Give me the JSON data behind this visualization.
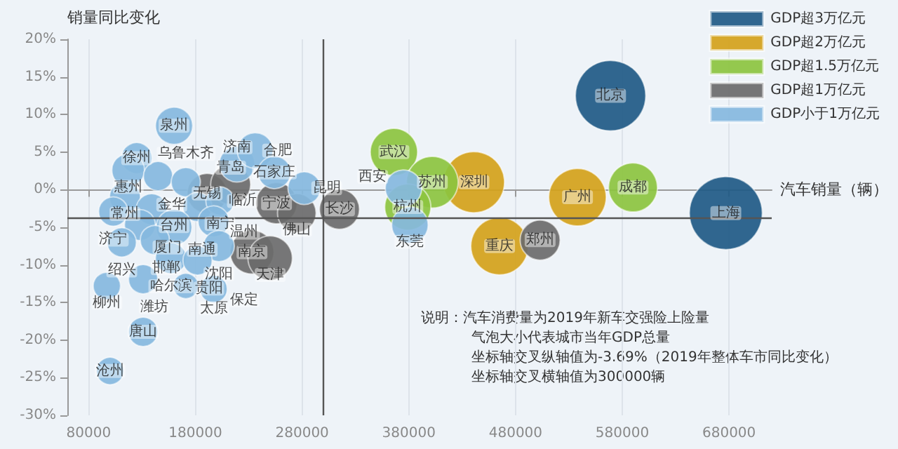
{
  "chart_data": {
    "type": "bubble",
    "xlabel": "汽车销量（辆）",
    "ylabel": "销量同比变化",
    "xlim": [
      60000,
      720000
    ],
    "xticks": [
      80000,
      180000,
      280000,
      380000,
      480000,
      580000,
      680000
    ],
    "ylim": [
      -30,
      20
    ],
    "yticks": [
      {
        "value": -30,
        "label": "-30%"
      },
      {
        "value": -25,
        "label": "-25%"
      },
      {
        "value": -20,
        "label": "-20%"
      },
      {
        "value": -15,
        "label": "-15%"
      },
      {
        "value": -10,
        "label": "-10%"
      },
      {
        "value": -5,
        "label": "-5%"
      },
      {
        "value": 0,
        "label": "0%"
      },
      {
        "value": 5,
        "label": "5%"
      },
      {
        "value": 10,
        "label": "10%"
      },
      {
        "value": 15,
        "label": "15%"
      },
      {
        "value": 20,
        "label": "20%"
      }
    ],
    "grid": "x",
    "legend": "top right",
    "series": [
      {
        "name": "GDP超3万亿元",
        "color": "#1f5a85",
        "x": [
          569000,
          677000
        ],
        "values": [
          12.5,
          -3.1
        ],
        "sizes": [
          0.93,
          1
        ]
      },
      {
        "name": "GDP超2万亿元",
        "color": "#d4a21a",
        "x": [
          441000,
          538000,
          465000
        ],
        "values": [
          1.0,
          -1.0,
          -7.5
        ],
        "sizes": [
          0.7,
          0.62,
          0.62
        ]
      },
      {
        "name": "GDP超1.5万亿元",
        "color": "#8cc43f",
        "x": [
          366000,
          402000,
          379000,
          590000
        ],
        "values": [
          5.0,
          1.0,
          -2.3,
          0.3
        ],
        "sizes": [
          0.42,
          0.5,
          0.4,
          0.45
        ]
      },
      {
        "name": "GDP超1万亿元",
        "color": "#6b6b6b",
        "x": [
          191000,
          213000,
          256000,
          275000,
          233000,
          250000,
          315000,
          503000
        ],
        "values": [
          -0.5,
          0.7,
          -1.8,
          -3.1,
          -8.3,
          -9.1,
          -2.6,
          -6.7
        ],
        "sizes": [
          0.3,
          0.3,
          0.32,
          0.28,
          0.36,
          0.37,
          0.3,
          0.3
        ]
      },
      {
        "name": "GDP小于1万亿元",
        "color": "#86b9de",
        "x": [
          160000,
          125000,
          117000,
          145000,
          114000,
          103000,
          139000,
          171000,
          182000,
          219000,
          236000,
          254000,
          282000,
          203000,
          128000,
          160000,
          197000,
          111000,
          142000,
          202000,
          157000,
          182000,
          97000,
          131000,
          171000,
          197000,
          131000,
          100000,
          375000,
          381000
        ],
        "values": [
          8.5,
          4.2,
          2.6,
          1.8,
          -1.0,
          -2.9,
          -2.6,
          1.0,
          -2.3,
          3.4,
          5.2,
          2.3,
          0.2,
          -1.5,
          -4.7,
          -5.0,
          -4.2,
          -7.0,
          -6.7,
          -7.5,
          -9.1,
          -9.4,
          -12.8,
          -11.9,
          -12.8,
          -13.2,
          -18.9,
          -24.1,
          0.2,
          -4.7
        ],
        "sizes": [
          0.26,
          0.18,
          0.2,
          0.16,
          0.18,
          0.16,
          0.18,
          0.16,
          0.16,
          0.24,
          0.24,
          0.2,
          0.2,
          0.15,
          0.18,
          0.24,
          0.18,
          0.16,
          0.16,
          0.18,
          0.18,
          0.16,
          0.14,
          0.16,
          0.12,
          0.14,
          0.16,
          0.14,
          0.25,
          0.25
        ]
      }
    ],
    "ref_lines": [
      {
        "axis": "x",
        "value": 300000
      },
      {
        "axis": "y",
        "value": -3.69
      }
    ],
    "annotations": [
      {
        "text": "北京",
        "x": 569000,
        "y": 12.5
      },
      {
        "text": "上海",
        "x": 677000,
        "y": -3.1
      },
      {
        "text": "深圳",
        "x": 441000,
        "y": 1.0
      },
      {
        "text": "广州",
        "x": 538000,
        "y": -1.0
      },
      {
        "text": "重庆",
        "x": 465000,
        "y": -7.5
      },
      {
        "text": "武汉",
        "x": 366000,
        "y": 5.0
      },
      {
        "text": "苏州",
        "x": 402000,
        "y": 1.0
      },
      {
        "text": "杭州",
        "x": 379000,
        "y": -2.3
      },
      {
        "text": "成都",
        "x": 590000,
        "y": 0.3
      },
      {
        "text": "无锡",
        "x": 191000,
        "y": -0.5
      },
      {
        "text": "青岛",
        "x": 213000,
        "y": 0.7
      },
      {
        "text": "宁波",
        "x": 256000,
        "y": -1.8
      },
      {
        "text": "佛山",
        "x": 275000,
        "y": -3.1
      },
      {
        "text": "南京",
        "x": 233000,
        "y": -8.3
      },
      {
        "text": "天津",
        "x": 250000,
        "y": -9.1
      },
      {
        "text": "长沙",
        "x": 315000,
        "y": -2.6
      },
      {
        "text": "郑州",
        "x": 503000,
        "y": -6.7
      },
      {
        "text": "泉州",
        "x": 160000,
        "y": 8.5
      },
      {
        "text": "徐州",
        "x": 125000,
        "y": 4.2
      },
      {
        "text": "惠州",
        "x": 117000,
        "y": 2.6
      },
      {
        "text": "乌鲁木齐",
        "x": 145000,
        "y": 1.8
      },
      {
        "text": "常州",
        "x": 114000,
        "y": -1.0
      },
      {
        "text": "济宁",
        "x": 103000,
        "y": -2.9
      },
      {
        "text": "台州",
        "x": 139000,
        "y": -2.6
      },
      {
        "text": "金华",
        "x": 171000,
        "y": 1.0
      },
      {
        "text": "南宁",
        "x": 182000,
        "y": -2.3
      },
      {
        "text": "济南",
        "x": 219000,
        "y": 3.4
      },
      {
        "text": "合肥",
        "x": 236000,
        "y": 5.2
      },
      {
        "text": "石家庄",
        "x": 254000,
        "y": 2.3
      },
      {
        "text": "昆明",
        "x": 282000,
        "y": 0.2
      },
      {
        "text": "临沂",
        "x": 203000,
        "y": -1.5
      },
      {
        "text": "厦门",
        "x": 128000,
        "y": -4.7
      },
      {
        "text": "南通",
        "x": 160000,
        "y": -5.0
      },
      {
        "text": "温州",
        "x": 197000,
        "y": -4.2
      },
      {
        "text": "绍兴",
        "x": 111000,
        "y": -7.0
      },
      {
        "text": "邯郸",
        "x": 142000,
        "y": -6.7
      },
      {
        "text": "沈阳",
        "x": 202000,
        "y": -7.5
      },
      {
        "text": "哈尔滨",
        "x": 157000,
        "y": -9.1
      },
      {
        "text": "贵阳",
        "x": 182000,
        "y": -9.4
      },
      {
        "text": "柳州",
        "x": 97000,
        "y": -12.8
      },
      {
        "text": "潍坊",
        "x": 131000,
        "y": -11.9
      },
      {
        "text": "太原",
        "x": 171000,
        "y": -12.8
      },
      {
        "text": "保定",
        "x": 197000,
        "y": -13.2
      },
      {
        "text": "唐山",
        "x": 131000,
        "y": -18.9
      },
      {
        "text": "沧州",
        "x": 100000,
        "y": -24.1
      },
      {
        "text": "西安",
        "x": 375000,
        "y": 0.2
      },
      {
        "text": "东莞",
        "x": 381000,
        "y": -4.7
      },
      "说明：汽车消费量为2019年新车交强险上险量",
      "气泡大小代表城市当年GDP总量",
      "坐标轴交叉纵轴值为-3.69%（2019年整体车市同比变化）",
      "坐标轴交叉横轴值为300000辆"
    ]
  }
}
